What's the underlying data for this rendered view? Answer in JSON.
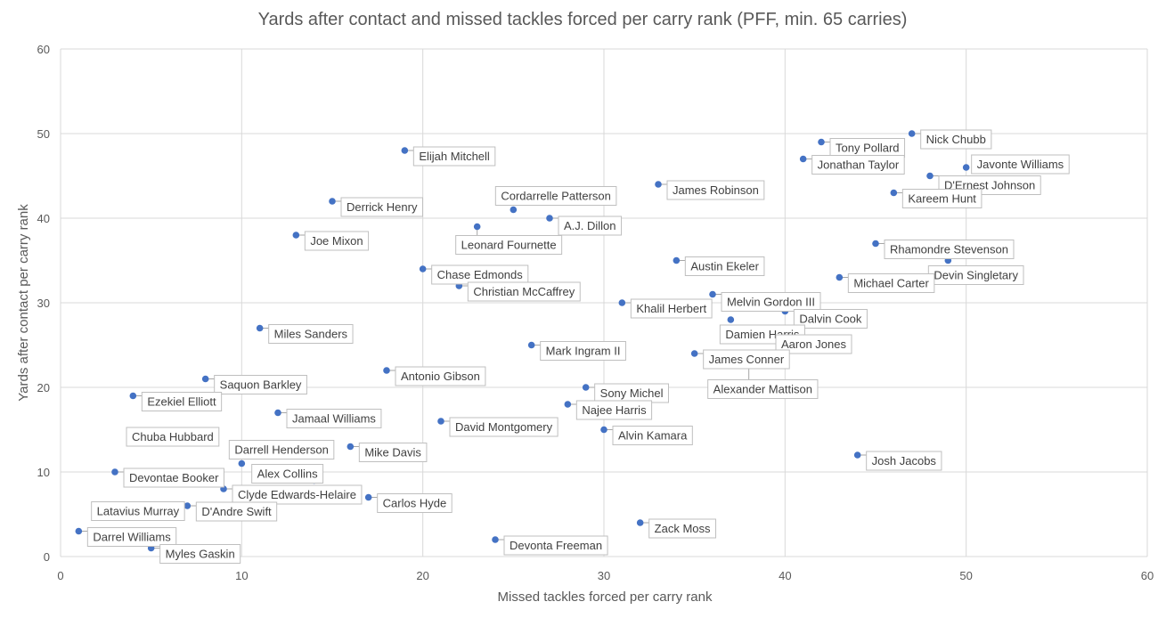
{
  "chart_data": {
    "type": "scatter",
    "title": "Yards after contact and missed tackles forced per carry rank (PFF, min. 65 carries)",
    "xlabel": "Missed tackles forced per carry rank",
    "ylabel": "Yards after contact per carry rank",
    "xlim": [
      0,
      60
    ],
    "ylim": [
      0,
      60
    ],
    "xticks": [
      0,
      10,
      20,
      30,
      40,
      50,
      60
    ],
    "yticks": [
      0,
      10,
      20,
      30,
      40,
      50,
      60
    ],
    "grid": true,
    "legend": "none",
    "marker_color": "#4472C4",
    "points": [
      {
        "name": "Nick Chubb",
        "x": 47,
        "y": 50
      },
      {
        "name": "Tony Pollard",
        "x": 42,
        "y": 49
      },
      {
        "name": "Jonathan Taylor",
        "x": 41,
        "y": 47
      },
      {
        "name": "Javonte Williams",
        "x": 50,
        "y": 46
      },
      {
        "name": "D'Ernest Johnson",
        "x": 48,
        "y": 45
      },
      {
        "name": "Kareem Hunt",
        "x": 46,
        "y": 43
      },
      {
        "name": "Elijah Mitchell",
        "x": 19,
        "y": 48
      },
      {
        "name": "James Robinson",
        "x": 33,
        "y": 44
      },
      {
        "name": "Derrick Henry",
        "x": 15,
        "y": 42
      },
      {
        "name": "Cordarrelle Patterson",
        "x": 25,
        "y": 41
      },
      {
        "name": "A.J. Dillon",
        "x": 27,
        "y": 40
      },
      {
        "name": "Leonard Fournette",
        "x": 23,
        "y": 39
      },
      {
        "name": "Joe Mixon",
        "x": 13,
        "y": 38
      },
      {
        "name": "Rhamondre Stevenson",
        "x": 45,
        "y": 37
      },
      {
        "name": "Devin Singletary",
        "x": 49,
        "y": 35
      },
      {
        "name": "Austin Ekeler",
        "x": 34,
        "y": 35
      },
      {
        "name": "Chase Edmonds",
        "x": 20,
        "y": 34
      },
      {
        "name": "Michael Carter",
        "x": 43,
        "y": 33
      },
      {
        "name": "Christian McCaffrey",
        "x": 22,
        "y": 32
      },
      {
        "name": "Melvin Gordon III",
        "x": 36,
        "y": 31
      },
      {
        "name": "Khalil Herbert",
        "x": 31,
        "y": 30
      },
      {
        "name": "Dalvin Cook",
        "x": 40,
        "y": 29
      },
      {
        "name": "Damien Harris",
        "x": 37,
        "y": 28
      },
      {
        "name": "Miles Sanders",
        "x": 11,
        "y": 27
      },
      {
        "name": "Aaron Jones",
        "x": 39,
        "y": 26
      },
      {
        "name": "Mark Ingram II",
        "x": 26,
        "y": 25
      },
      {
        "name": "James Conner",
        "x": 35,
        "y": 24
      },
      {
        "name": "Alexander Mattison",
        "x": 38,
        "y": 23
      },
      {
        "name": "Antonio Gibson",
        "x": 18,
        "y": 22
      },
      {
        "name": "Saquon Barkley",
        "x": 8,
        "y": 21
      },
      {
        "name": "Sony Michel",
        "x": 29,
        "y": 20
      },
      {
        "name": "Ezekiel Elliott",
        "x": 4,
        "y": 19
      },
      {
        "name": "Najee Harris",
        "x": 28,
        "y": 18
      },
      {
        "name": "Jamaal Williams",
        "x": 12,
        "y": 17
      },
      {
        "name": "David Montgomery",
        "x": 21,
        "y": 16
      },
      {
        "name": "Alvin Kamara",
        "x": 30,
        "y": 15
      },
      {
        "name": "Chuba Hubbard",
        "x": 6,
        "y": 14
      },
      {
        "name": "Mike Davis",
        "x": 16,
        "y": 13
      },
      {
        "name": "Josh Jacobs",
        "x": 44,
        "y": 12
      },
      {
        "name": "Darrell Henderson",
        "x": 10,
        "y": 11
      },
      {
        "name": "Devontae Booker",
        "x": 3,
        "y": 10
      },
      {
        "name": "Alex Collins",
        "x": 14,
        "y": 9
      },
      {
        "name": "Clyde Edwards-Helaire",
        "x": 9,
        "y": 8
      },
      {
        "name": "Carlos Hyde",
        "x": 17,
        "y": 7
      },
      {
        "name": "D'Andre Swift",
        "x": 7,
        "y": 6
      },
      {
        "name": "Latavius Murray",
        "x": 2,
        "y": 5
      },
      {
        "name": "Zack Moss",
        "x": 32,
        "y": 4
      },
      {
        "name": "Darrel Williams",
        "x": 1,
        "y": 3
      },
      {
        "name": "Devonta Freeman",
        "x": 24,
        "y": 2
      },
      {
        "name": "Myles Gaskin",
        "x": 5,
        "y": 1
      }
    ]
  }
}
